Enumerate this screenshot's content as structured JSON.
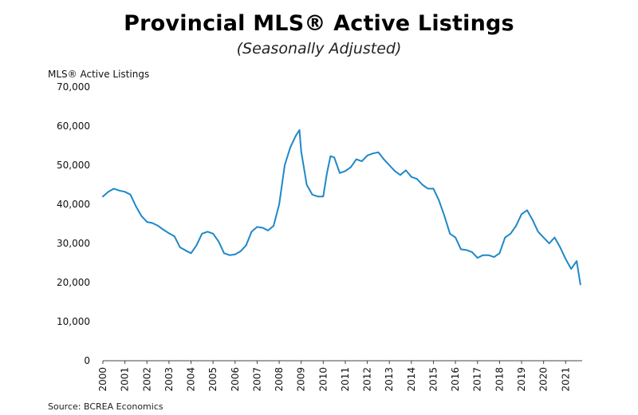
{
  "chart_data": {
    "type": "line",
    "title": "Provincial MLS® Active Listings",
    "subtitle": "(Seasonally Adjusted)",
    "ylabel": "MLS® Active Listings",
    "source": "Source: BCREA Economics",
    "ylim": [
      0,
      70000
    ],
    "yticks": [
      0,
      10000,
      20000,
      30000,
      40000,
      50000,
      60000,
      70000
    ],
    "ytick_labels": [
      "0",
      "10,000",
      "20,000",
      "30,000",
      "40,000",
      "50,000",
      "60,000",
      "70,000"
    ],
    "xlim": [
      2000.0,
      2021.75
    ],
    "xticks": [
      "2000",
      "2001",
      "2002",
      "2003",
      "2004",
      "2005",
      "2006",
      "2007",
      "2008",
      "2009",
      "2010",
      "2011",
      "2012",
      "2013",
      "2014",
      "2015",
      "2016",
      "2017",
      "2018",
      "2019",
      "2020",
      "2021"
    ],
    "grid": false,
    "legend": "none",
    "line_color": "#1e88c8",
    "series": [
      {
        "x": [
          2000.0,
          2000.25,
          2000.5,
          2000.75,
          2001.0,
          2001.25,
          2001.5,
          2001.75,
          2002.0,
          2002.25,
          2002.5,
          2002.75,
          2003.0,
          2003.25,
          2003.5,
          2003.75,
          2004.0,
          2004.25,
          2004.5,
          2004.75,
          2005.0,
          2005.25,
          2005.5,
          2005.75,
          2006.0,
          2006.25,
          2006.5,
          2006.75,
          2007.0,
          2007.25,
          2007.5,
          2007.75,
          2008.0,
          2008.25,
          2008.5,
          2008.75,
          2008.92,
          2009.0,
          2009.25,
          2009.5,
          2009.75,
          2010.0,
          2010.17,
          2010.33,
          2010.5,
          2010.75,
          2011.0,
          2011.25,
          2011.5,
          2011.75,
          2012.0,
          2012.25,
          2012.5,
          2012.75,
          2013.0,
          2013.25,
          2013.5,
          2013.75,
          2014.0,
          2014.25,
          2014.5,
          2014.75,
          2015.0,
          2015.25,
          2015.5,
          2015.75,
          2016.0,
          2016.25,
          2016.5,
          2016.75,
          2017.0,
          2017.25,
          2017.5,
          2017.75,
          2018.0,
          2018.25,
          2018.5,
          2018.75,
          2019.0,
          2019.25,
          2019.5,
          2019.75,
          2020.0,
          2020.25,
          2020.5,
          2020.75,
          2021.0,
          2021.25,
          2021.5,
          2021.67
        ],
        "y": [
          42000,
          43200,
          44000,
          43500,
          43200,
          42500,
          39500,
          37000,
          35500,
          35200,
          34500,
          33500,
          32600,
          31800,
          29000,
          28200,
          27500,
          29500,
          32500,
          33000,
          32500,
          30500,
          27500,
          27000,
          27200,
          28000,
          29500,
          33000,
          34200,
          34000,
          33300,
          34500,
          40000,
          50000,
          54500,
          57500,
          59000,
          53500,
          45000,
          42500,
          42000,
          42000,
          48000,
          52300,
          52000,
          48000,
          48500,
          49500,
          51500,
          51000,
          52500,
          53000,
          53300,
          51500,
          50000,
          48500,
          47500,
          48700,
          47000,
          46500,
          45000,
          44000,
          44000,
          41000,
          37000,
          32500,
          31500,
          28500,
          28300,
          27800,
          26300,
          27000,
          27000,
          26500,
          27500,
          31500,
          32500,
          34500,
          37500,
          38500,
          36000,
          33000,
          31500,
          30000,
          31500,
          29000,
          26000,
          23500,
          25500,
          19500
        ]
      }
    ]
  }
}
